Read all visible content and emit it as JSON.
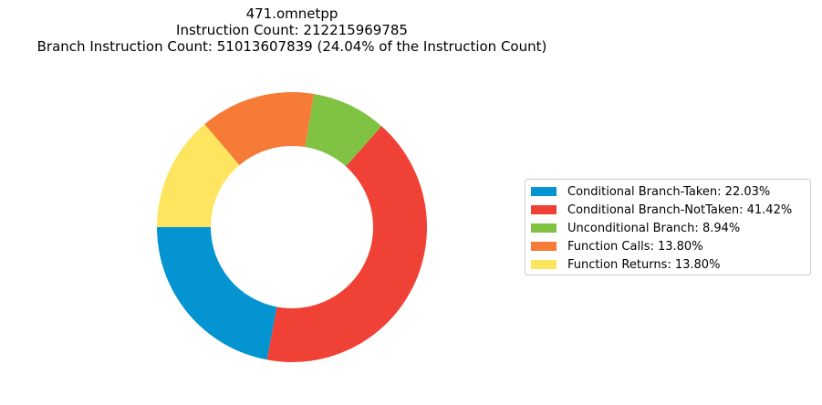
{
  "chart_data": {
    "type": "pie",
    "donut": true,
    "title_lines": [
      "471.omnetpp",
      "Instruction Count: 212215969785",
      "Branch Instruction Count: 51013607839 (24.04% of the Instruction Count)"
    ],
    "legend_placement": "right",
    "slices": [
      {
        "label": "Conditional Branch-Taken: 22.03%",
        "value": 22.03,
        "color": "#0394d1"
      },
      {
        "label": "Conditional Branch-NotTaken: 41.42%",
        "value": 41.42,
        "color": "#f04136"
      },
      {
        "label": "Unconditional Branch: 8.94%",
        "value": 8.94,
        "color": "#80c342"
      },
      {
        "label": "Function Calls: 13.80%",
        "value": 13.8,
        "color": "#f57b37"
      },
      {
        "label": "Function Returns: 13.80%",
        "value": 13.8,
        "color": "#fee560"
      }
    ]
  }
}
